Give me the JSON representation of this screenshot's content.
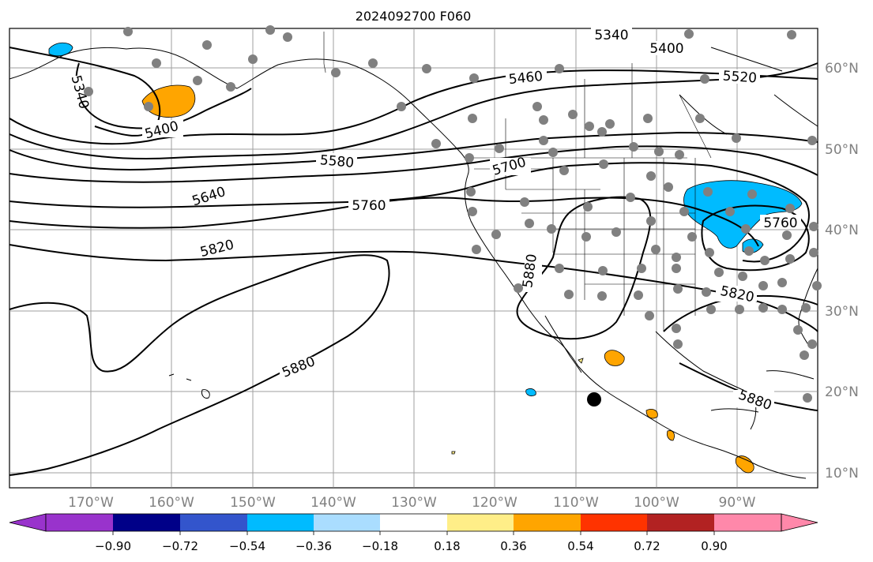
{
  "title": "2024092700 F060",
  "lon_labels": [
    "170°W",
    "160°W",
    "150°W",
    "140°W",
    "130°W",
    "120°W",
    "110°W",
    "100°W",
    "90°W"
  ],
  "lat_labels": [
    "60°N",
    "50°N",
    "40°N",
    "30°N",
    "20°N",
    "10°N"
  ],
  "contour_labels": [
    "5340",
    "5340",
    "5400",
    "5400",
    "5460",
    "5520",
    "5580",
    "5640",
    "5700",
    "5760",
    "5760",
    "5820",
    "5820",
    "5880",
    "5880",
    "5880"
  ],
  "colorbar": {
    "colors": [
      "#9933cc",
      "#000088",
      "#3355cc",
      "#00bbff",
      "#aaddff",
      "#ffffff",
      "#ffee88",
      "#ffa500",
      "#ff3300",
      "#b22222",
      "#ff88aa"
    ],
    "tick_labels": [
      "−0.90",
      "−0.72",
      "−0.54",
      "−0.36",
      "−0.18",
      "0.18",
      "0.36",
      "0.54",
      "0.72",
      "0.90"
    ]
  },
  "colors": {
    "station": "#808080",
    "contour": "#000000",
    "grid": "#808080",
    "axis_text": "#808080"
  }
}
